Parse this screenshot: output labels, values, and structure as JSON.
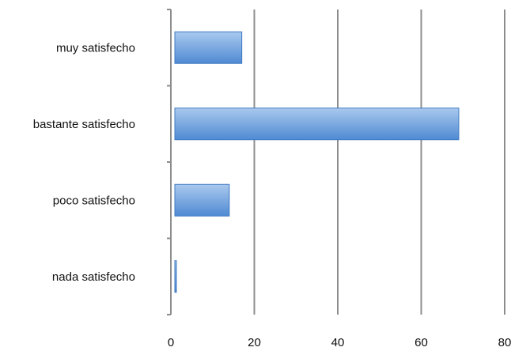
{
  "chart_data": {
    "type": "bar",
    "orientation": "horizontal",
    "title": "",
    "xlabel": "",
    "ylabel": "",
    "categories": [
      "muy satisfecho",
      "bastante satisfecho",
      "poco satisfecho",
      "nada satisfecho"
    ],
    "values": [
      17,
      69,
      14,
      1
    ],
    "xlim": [
      0,
      80
    ],
    "xticks": [
      "0",
      "20",
      "40",
      "60",
      "80"
    ],
    "grid": "vertical",
    "legend": "none",
    "colors": {
      "bar_top": "#a9c9ee",
      "bar_bottom": "#4f8ad3",
      "bar_edge": "#3f79c2",
      "grid": "#8c8c8c",
      "axis": "#8c8c8c",
      "text": "#111111"
    }
  }
}
